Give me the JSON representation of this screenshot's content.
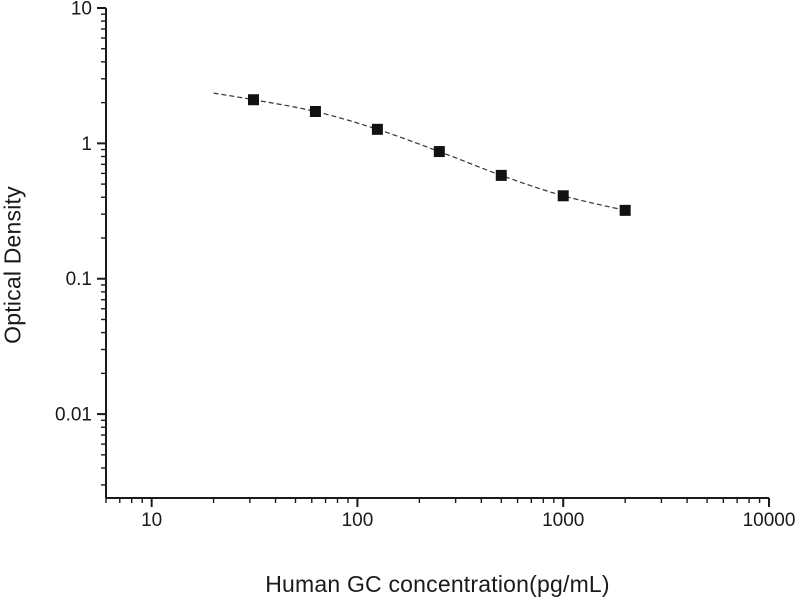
{
  "chart_data": {
    "type": "line",
    "title": "",
    "xlabel": "Human GC concentration(pg/mL)",
    "ylabel": "Optical Density",
    "x_scale": "log",
    "y_scale": "log",
    "xlim": [
      6,
      10000
    ],
    "ylim": [
      0.0024,
      10
    ],
    "x_major_ticks": [
      10,
      100,
      1000,
      10000
    ],
    "x_tick_labels": [
      "10",
      "100",
      "1000",
      "10000"
    ],
    "y_major_ticks": [
      10,
      1,
      0.1,
      0.01
    ],
    "y_tick_labels": [
      "10",
      "1",
      "0.1",
      "0.01"
    ],
    "grid": false,
    "legend_position": "none",
    "axis_color": "#1a1a1a",
    "marker_color": "#111111",
    "line_color": "#333333",
    "marker_shape": "filled-square",
    "line_style": "dashed",
    "series": [
      {
        "x": [
          31.25,
          62.5,
          125,
          250,
          500,
          1000,
          2000
        ],
        "y": [
          2.1,
          1.72,
          1.27,
          0.87,
          0.58,
          0.41,
          0.32
        ],
        "curve_start": {
          "x": 20,
          "y": 2.35
        }
      }
    ]
  }
}
